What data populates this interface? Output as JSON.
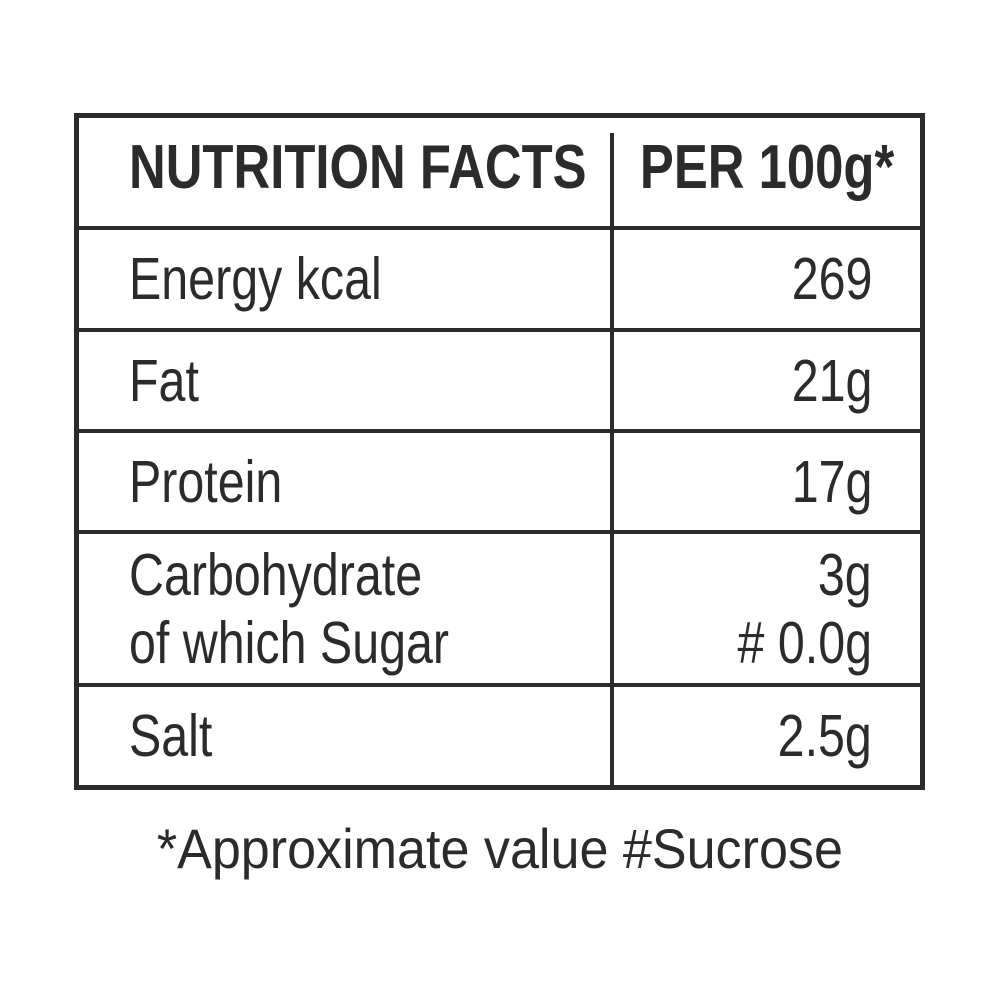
{
  "colors": {
    "text": "#2b2b2b",
    "border": "#2b2b2b",
    "background": "#ffffff"
  },
  "table": {
    "header": {
      "name_column": "NUTRITION FACTS",
      "value_column": "PER 100g*"
    },
    "rows": [
      {
        "label": "Energy kcal",
        "value": "269"
      },
      {
        "label": "Fat",
        "value": "21g"
      },
      {
        "label": "Protein",
        "value": "17g"
      },
      {
        "label": "Carbohydrate",
        "label_line2": "of which Sugar",
        "value": "3g",
        "value_line2": "# 0.0g"
      },
      {
        "label": "Salt",
        "value": "2.5g"
      }
    ]
  },
  "footnote": {
    "text": "*Approximate value #Sucrose"
  }
}
